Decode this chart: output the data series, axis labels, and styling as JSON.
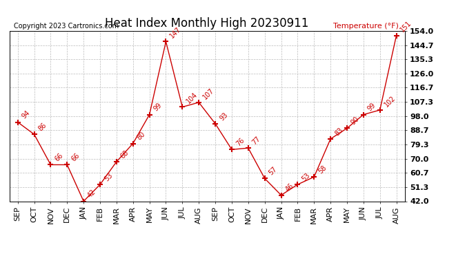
{
  "title": "Heat Index Monthly High 20230911",
  "copyright": "Copyright 2023 Cartronics.com",
  "legend_label": "Temperature (°F)",
  "months": [
    "SEP",
    "OCT",
    "NOV",
    "DEC",
    "JAN",
    "FEB",
    "MAR",
    "APR",
    "MAY",
    "JUN",
    "JUL",
    "AUG",
    "SEP",
    "OCT",
    "NOV",
    "DEC",
    "JAN",
    "FEB",
    "MAR",
    "APR",
    "MAY",
    "JUN",
    "JUL",
    "AUG"
  ],
  "values": [
    94,
    86,
    66,
    66,
    42,
    53,
    68,
    80,
    99,
    147,
    104,
    107,
    93,
    76,
    77,
    57,
    46,
    53,
    58,
    83,
    90,
    99,
    102,
    151
  ],
  "line_color": "#cc0000",
  "marker": "+",
  "marker_size": 6,
  "marker_linewidth": 1.5,
  "ylim": [
    42.0,
    154.0
  ],
  "yticks": [
    42.0,
    51.3,
    60.7,
    70.0,
    79.3,
    88.7,
    98.0,
    107.3,
    116.7,
    126.0,
    135.3,
    144.7,
    154.0
  ],
  "background_color": "#ffffff",
  "grid_color": "#bbbbbb",
  "title_fontsize": 12,
  "tick_fontsize": 8,
  "annotation_fontsize": 7,
  "copyright_fontsize": 7,
  "legend_fontsize": 8
}
